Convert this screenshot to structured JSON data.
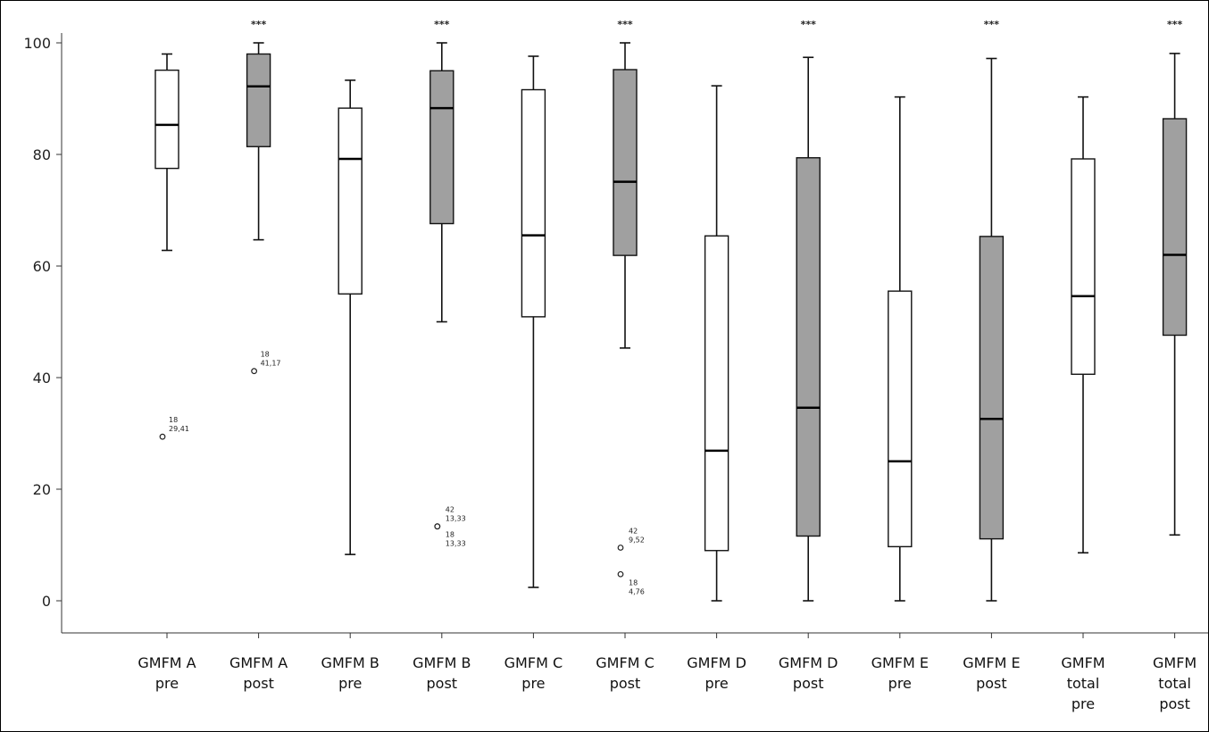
{
  "chart_data": {
    "type": "boxplot",
    "ylim": [
      0,
      100
    ],
    "y_ticks": [
      "0",
      "20",
      "40",
      "60",
      "80",
      "100"
    ],
    "y_tick_values": [
      0,
      20,
      40,
      60,
      80,
      100
    ],
    "grid": false,
    "colors": {
      "pre": "#ffffff",
      "post": "#a0a0a0",
      "line": "#111111"
    },
    "categories": [
      {
        "label": [
          "GMFM A",
          "pre"
        ],
        "group": "pre",
        "whisker_low": 62.8,
        "q1": 77.5,
        "median": 85.3,
        "q3": 95.1,
        "whisker_high": 98.0,
        "significance": "",
        "outliers": [
          {
            "value": 29.41,
            "id": "18",
            "value_label": "29,41"
          }
        ]
      },
      {
        "label": [
          "GMFM A",
          "post"
        ],
        "group": "post",
        "whisker_low": 64.7,
        "q1": 81.4,
        "median": 92.2,
        "q3": 98.0,
        "whisker_high": 100.0,
        "significance": "***",
        "outliers": [
          {
            "value": 41.17,
            "id": "18",
            "value_label": "41,17"
          }
        ]
      },
      {
        "label": [
          "GMFM B",
          "pre"
        ],
        "group": "pre",
        "whisker_low": 8.3,
        "q1": 55.0,
        "median": 79.2,
        "q3": 88.3,
        "whisker_high": 93.3,
        "significance": "",
        "outliers": []
      },
      {
        "label": [
          "GMFM B",
          "post"
        ],
        "group": "post",
        "whisker_low": 50.0,
        "q1": 67.6,
        "median": 88.3,
        "q3": 95.0,
        "whisker_high": 100.0,
        "significance": "***",
        "outliers": [
          {
            "value": 13.33,
            "id": "42",
            "value_label": "13,33"
          },
          {
            "value": 13.33,
            "id": "18",
            "value_label": "13,33"
          }
        ]
      },
      {
        "label": [
          "GMFM C",
          "pre"
        ],
        "group": "pre",
        "whisker_low": 2.4,
        "q1": 50.9,
        "median": 65.5,
        "q3": 91.6,
        "whisker_high": 97.6,
        "significance": "",
        "outliers": []
      },
      {
        "label": [
          "GMFM C",
          "post"
        ],
        "group": "post",
        "whisker_low": 45.3,
        "q1": 61.9,
        "median": 75.1,
        "q3": 95.2,
        "whisker_high": 100.0,
        "significance": "***",
        "outliers": [
          {
            "value": 9.52,
            "id": "42",
            "value_label": "9,52"
          },
          {
            "value": 4.76,
            "id": "18",
            "value_label": "4,76"
          }
        ]
      },
      {
        "label": [
          "GMFM D",
          "pre"
        ],
        "group": "pre",
        "whisker_low": 0.0,
        "q1": 9.0,
        "median": 26.9,
        "q3": 65.4,
        "whisker_high": 92.3,
        "significance": "",
        "outliers": []
      },
      {
        "label": [
          "GMFM D",
          "post"
        ],
        "group": "post",
        "whisker_low": 0.0,
        "q1": 11.6,
        "median": 34.6,
        "q3": 79.4,
        "whisker_high": 97.4,
        "significance": "***",
        "outliers": []
      },
      {
        "label": [
          "GMFM E",
          "pre"
        ],
        "group": "pre",
        "whisker_low": 0.0,
        "q1": 9.7,
        "median": 25.0,
        "q3": 55.5,
        "whisker_high": 90.3,
        "significance": "",
        "outliers": []
      },
      {
        "label": [
          "GMFM E",
          "post"
        ],
        "group": "post",
        "whisker_low": 0.0,
        "q1": 11.1,
        "median": 32.6,
        "q3": 65.3,
        "whisker_high": 97.2,
        "significance": "***",
        "outliers": []
      },
      {
        "label": [
          "GMFM",
          "total",
          "pre"
        ],
        "group": "pre",
        "whisker_low": 8.6,
        "q1": 40.6,
        "median": 54.6,
        "q3": 79.2,
        "whisker_high": 90.3,
        "significance": "",
        "outliers": []
      },
      {
        "label": [
          "GMFM",
          "total",
          "post"
        ],
        "group": "post",
        "whisker_low": 11.8,
        "q1": 47.6,
        "median": 62.0,
        "q3": 86.4,
        "whisker_high": 98.1,
        "significance": "***",
        "outliers": []
      }
    ]
  }
}
